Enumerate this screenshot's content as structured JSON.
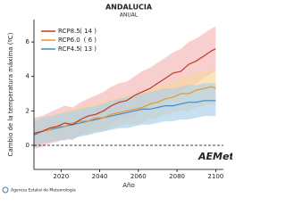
{
  "chart_data": {
    "type": "line",
    "title": "ANDALUCIA",
    "subtitle": "ANUAL",
    "y_label": "Cambio de la temperatura máxima (ºC)",
    "x_label": "Año",
    "footer": "Agencia Estatal de Meteorología",
    "logo": "AEMet",
    "x": [
      2006,
      2010,
      2014,
      2018,
      2022,
      2026,
      2030,
      2034,
      2038,
      2042,
      2046,
      2050,
      2054,
      2058,
      2062,
      2066,
      2070,
      2074,
      2078,
      2082,
      2086,
      2090,
      2094,
      2098,
      2100
    ],
    "xlim": [
      2006,
      2104
    ],
    "xticks": [
      2020,
      2040,
      2060,
      2080,
      2100
    ],
    "ylim": [
      -1.4,
      7.3
    ],
    "yticks": [
      0,
      2,
      4,
      6
    ],
    "zero_line": true,
    "series": [
      {
        "name": "RCP8.5",
        "members": 14,
        "members_label": "( 14 )",
        "color": "#c0392b",
        "band_color": "#f5b5b5",
        "values": [
          0.7,
          0.8,
          1.0,
          1.1,
          1.3,
          1.2,
          1.5,
          1.7,
          1.8,
          2.0,
          2.3,
          2.5,
          2.6,
          2.9,
          3.1,
          3.3,
          3.6,
          3.9,
          4.2,
          4.3,
          4.7,
          4.9,
          5.2,
          5.5,
          5.6
        ],
        "low": [
          -0.2,
          -0.1,
          0.1,
          0.2,
          0.4,
          0.3,
          0.6,
          0.8,
          0.9,
          1.0,
          1.3,
          1.5,
          1.6,
          1.8,
          2.0,
          2.2,
          2.5,
          2.7,
          3.0,
          3.1,
          3.4,
          3.6,
          3.9,
          4.2,
          4.3
        ],
        "high": [
          1.6,
          1.7,
          1.9,
          2.1,
          2.3,
          2.2,
          2.5,
          2.7,
          2.9,
          3.1,
          3.4,
          3.6,
          3.7,
          4.0,
          4.3,
          4.5,
          4.8,
          5.1,
          5.4,
          5.6,
          6.0,
          6.2,
          6.5,
          6.8,
          6.9
        ]
      },
      {
        "name": "RCP6.0",
        "members": 6,
        "members_label": "( 6 )",
        "color": "#e8962a",
        "band_color": "#f8d59e",
        "values": [
          0.7,
          0.8,
          0.9,
          1.1,
          1.1,
          1.3,
          1.4,
          1.4,
          1.6,
          1.6,
          1.8,
          1.9,
          2.0,
          2.1,
          2.2,
          2.4,
          2.5,
          2.7,
          2.8,
          3.0,
          3.0,
          3.2,
          3.3,
          3.4,
          3.3
        ],
        "low": [
          0.0,
          0.1,
          0.2,
          0.3,
          0.3,
          0.5,
          0.6,
          0.6,
          0.8,
          0.8,
          1.0,
          1.1,
          1.2,
          1.2,
          1.3,
          1.5,
          1.6,
          1.8,
          1.9,
          2.0,
          2.0,
          2.2,
          2.3,
          2.4,
          2.3
        ],
        "high": [
          1.5,
          1.6,
          1.7,
          1.9,
          1.9,
          2.1,
          2.3,
          2.3,
          2.5,
          2.5,
          2.7,
          2.8,
          2.9,
          3.0,
          3.1,
          3.3,
          3.5,
          3.6,
          3.7,
          3.9,
          4.0,
          4.2,
          4.3,
          4.4,
          4.3
        ]
      },
      {
        "name": "RCP4.5",
        "members": 13,
        "members_label": "( 13 )",
        "color": "#3f8cc8",
        "band_color": "#a9d0ea",
        "values": [
          0.6,
          0.8,
          0.9,
          1.0,
          1.1,
          1.2,
          1.3,
          1.4,
          1.5,
          1.6,
          1.7,
          1.8,
          1.9,
          2.0,
          2.1,
          2.1,
          2.2,
          2.3,
          2.3,
          2.4,
          2.5,
          2.5,
          2.6,
          2.6,
          2.6
        ],
        "low": [
          -0.1,
          0.1,
          0.2,
          0.3,
          0.3,
          0.4,
          0.5,
          0.6,
          0.7,
          0.8,
          0.9,
          1.0,
          1.0,
          1.1,
          1.2,
          1.2,
          1.3,
          1.4,
          1.4,
          1.5,
          1.5,
          1.6,
          1.7,
          1.7,
          1.7
        ],
        "high": [
          1.4,
          1.6,
          1.7,
          1.8,
          1.9,
          2.0,
          2.1,
          2.2,
          2.3,
          2.4,
          2.6,
          2.7,
          2.8,
          2.9,
          3.0,
          3.1,
          3.2,
          3.3,
          3.3,
          3.4,
          3.5,
          3.5,
          3.6,
          3.6,
          3.6
        ]
      }
    ]
  }
}
